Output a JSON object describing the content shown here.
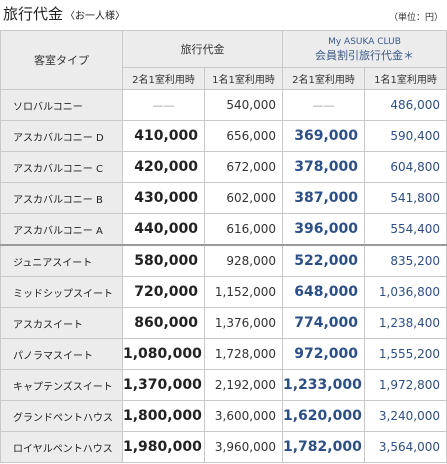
{
  "title": "旅行代金",
  "title_sub": "〈お一人様〉",
  "unit_note": "（単位：円）",
  "headers": {
    "cabin_type": "客室タイプ",
    "price_group": "旅行代金",
    "member_group_line1": "My ASUKA CLUB",
    "member_group_line2": "会員割引旅行代金＊",
    "two_per_room": "2名1室利用時",
    "one_per_room": "1名1室利用時"
  },
  "rows": [
    {
      "cabin": "ソロバルコニー",
      "p2": "——",
      "p1": "540,000",
      "m2": "——",
      "m1": "486,000"
    },
    {
      "cabin": "アスカバルコニー D",
      "p2": "410,000",
      "p1": "656,000",
      "m2": "369,000",
      "m1": "590,400"
    },
    {
      "cabin": "アスカバルコニー C",
      "p2": "420,000",
      "p1": "672,000",
      "m2": "378,000",
      "m1": "604,800"
    },
    {
      "cabin": "アスカバルコニー B",
      "p2": "430,000",
      "p1": "602,000",
      "m2": "387,000",
      "m1": "541,800"
    },
    {
      "cabin": "アスカバルコニー A",
      "p2": "440,000",
      "p1": "616,000",
      "m2": "396,000",
      "m1": "554,400"
    },
    {
      "cabin": "ジュニアスイート",
      "p2": "580,000",
      "p1": "928,000",
      "m2": "522,000",
      "m1": "835,200"
    },
    {
      "cabin": "ミッドシップスイート",
      "p2": "720,000",
      "p1": "1,152,000",
      "m2": "648,000",
      "m1": "1,036,800"
    },
    {
      "cabin": "アスカスイート",
      "p2": "860,000",
      "p1": "1,376,000",
      "m2": "774,000",
      "m1": "1,238,400"
    },
    {
      "cabin": "パノラマスイート",
      "p2": "1,080,000",
      "p1": "1,728,000",
      "m2": "972,000",
      "m1": "1,555,200"
    },
    {
      "cabin": "キャプテンズスイート",
      "p2": "1,370,000",
      "p1": "2,192,000",
      "m2": "1,233,000",
      "m1": "1,972,800"
    },
    {
      "cabin": "グランドペントハウス",
      "p2": "1,800,000",
      "p1": "3,600,000",
      "m2": "1,620,000",
      "m1": "3,240,000"
    },
    {
      "cabin": "ロイヤルペントハウス",
      "p2": "1,980,000",
      "p1": "3,960,000",
      "m2": "1,782,000",
      "m1": "3,564,000"
    }
  ],
  "colors": {
    "member_text": "#2c4f86",
    "header_bg": "#ececec",
    "border": "#c8c8c8"
  }
}
